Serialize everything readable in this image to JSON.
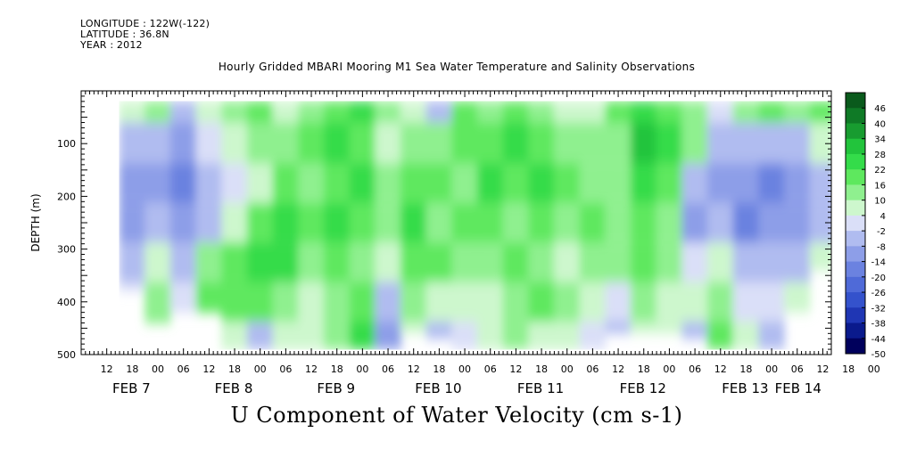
{
  "header": {
    "longitude": "LONGITUDE : 122W(-122)",
    "latitude": "LATITUDE : 36.8N",
    "year": "YEAR : 2012",
    "title": "Hourly Gridded MBARI Mooring M1 Sea Water Temperature and Salinity Observations"
  },
  "footer": {
    "variable_label": "U Component of Water Velocity (cm s-1)"
  },
  "chart_data": {
    "type": "heatmap",
    "title": "Hourly Gridded MBARI Mooring M1 Sea Water Temperature and Salinity Observations",
    "xlabel": "",
    "ylabel": "DEPTH (m)",
    "colorbar_label": "U Component of Water Velocity (cm s-1)",
    "x_hour_range": [
      6,
      174
    ],
    "y_range": [
      0,
      500
    ],
    "y_inverted": true,
    "y_ticks": [
      100,
      200,
      300,
      400,
      500
    ],
    "hour_tick_labels": [
      "12",
      "18",
      "00",
      "06",
      "12",
      "18",
      "00",
      "06",
      "12",
      "18",
      "00",
      "06",
      "12",
      "18",
      "00",
      "06",
      "12",
      "18",
      "00",
      "06",
      "12",
      "18",
      "00",
      "06",
      "12",
      "18",
      "00",
      "06",
      "12",
      "18",
      "00"
    ],
    "day_labels": [
      "FEB 7",
      "FEB 8",
      "FEB 9",
      "FEB 10",
      "FEB 11",
      "FEB 12",
      "FEB 13",
      "FEB 14"
    ],
    "colorbar_levels": [
      -50,
      -44,
      -38,
      -32,
      -26,
      -20,
      -14,
      -8,
      -2,
      4,
      10,
      16,
      22,
      28,
      34,
      40,
      46
    ],
    "colorbar_colors": [
      "#00005c",
      "#0a1a8c",
      "#1f36b4",
      "#3452cc",
      "#4f6ad8",
      "#6b82e0",
      "#8d9ee8",
      "#b0bcf0",
      "#dadff8",
      "#cdf7cd",
      "#8ff08f",
      "#5ee85e",
      "#34dc4a",
      "#22c43c",
      "#189c30",
      "#0f7a26",
      "#0a5a1c"
    ],
    "profiles": [
      {
        "hour": 12,
        "bottom": 380,
        "values": [
          4,
          -8,
          -14,
          -14,
          -8,
          -2,
          4
        ]
      },
      {
        "hour": 18,
        "bottom": 440,
        "values": [
          10,
          -8,
          -14,
          -8,
          4,
          10,
          16
        ]
      },
      {
        "hour": 24,
        "bottom": 420,
        "values": [
          -8,
          -14,
          -20,
          -14,
          -8,
          -2,
          4
        ]
      },
      {
        "hour": 30,
        "bottom": 420,
        "values": [
          4,
          -2,
          -8,
          -8,
          10,
          16,
          10
        ]
      },
      {
        "hour": 36,
        "bottom": 490,
        "values": [
          10,
          4,
          -2,
          4,
          16,
          16,
          4
        ]
      },
      {
        "hour": 42,
        "bottom": 490,
        "values": [
          16,
          10,
          4,
          16,
          22,
          16,
          -8
        ]
      },
      {
        "hour": 48,
        "bottom": 490,
        "values": [
          4,
          10,
          16,
          22,
          22,
          10,
          4
        ]
      },
      {
        "hour": 54,
        "bottom": 490,
        "values": [
          10,
          16,
          10,
          16,
          10,
          4,
          4
        ]
      },
      {
        "hour": 60,
        "bottom": 490,
        "values": [
          16,
          22,
          16,
          22,
          16,
          10,
          10
        ]
      },
      {
        "hour": 66,
        "bottom": 490,
        "values": [
          22,
          16,
          22,
          16,
          10,
          16,
          22
        ]
      },
      {
        "hour": 72,
        "bottom": 490,
        "values": [
          10,
          4,
          10,
          10,
          4,
          -8,
          -14
        ]
      },
      {
        "hour": 78,
        "bottom": 460,
        "values": [
          4,
          10,
          16,
          22,
          16,
          10,
          4
        ]
      },
      {
        "hour": 84,
        "bottom": 470,
        "values": [
          -8,
          10,
          16,
          10,
          16,
          4,
          -8
        ]
      },
      {
        "hour": 90,
        "bottom": 490,
        "values": [
          16,
          16,
          10,
          16,
          10,
          4,
          -2
        ]
      },
      {
        "hour": 96,
        "bottom": 490,
        "values": [
          10,
          16,
          22,
          16,
          10,
          4,
          4
        ]
      },
      {
        "hour": 102,
        "bottom": 490,
        "values": [
          16,
          22,
          16,
          10,
          16,
          10,
          10
        ]
      },
      {
        "hour": 108,
        "bottom": 490,
        "values": [
          10,
          16,
          22,
          16,
          10,
          16,
          4
        ]
      },
      {
        "hour": 114,
        "bottom": 490,
        "values": [
          4,
          10,
          16,
          10,
          4,
          10,
          4
        ]
      },
      {
        "hour": 120,
        "bottom": 490,
        "values": [
          4,
          10,
          10,
          16,
          10,
          4,
          -2
        ]
      },
      {
        "hour": 126,
        "bottom": 460,
        "values": [
          16,
          10,
          10,
          10,
          10,
          -2,
          -8
        ]
      },
      {
        "hour": 132,
        "bottom": 460,
        "values": [
          22,
          28,
          22,
          16,
          16,
          10,
          4
        ]
      },
      {
        "hour": 138,
        "bottom": 460,
        "values": [
          16,
          22,
          16,
          10,
          10,
          4,
          4
        ]
      },
      {
        "hour": 144,
        "bottom": 470,
        "values": [
          10,
          10,
          -8,
          -14,
          -2,
          4,
          -8
        ]
      },
      {
        "hour": 150,
        "bottom": 490,
        "values": [
          -2,
          -8,
          -14,
          -8,
          4,
          10,
          16
        ]
      },
      {
        "hour": 156,
        "bottom": 490,
        "values": [
          10,
          -8,
          -14,
          -20,
          -8,
          -2,
          4
        ]
      },
      {
        "hour": 162,
        "bottom": 490,
        "values": [
          16,
          -8,
          -20,
          -14,
          -8,
          -2,
          -8
        ]
      },
      {
        "hour": 168,
        "bottom": 420,
        "values": [
          10,
          -8,
          -14,
          -14,
          -8,
          4,
          4
        ]
      },
      {
        "hour": 174,
        "bottom": 340,
        "values": [
          16,
          4,
          -8,
          -8,
          4,
          4,
          4
        ]
      }
    ],
    "profile_depths": [
      20,
      100,
      175,
      250,
      325,
      400,
      475
    ]
  }
}
